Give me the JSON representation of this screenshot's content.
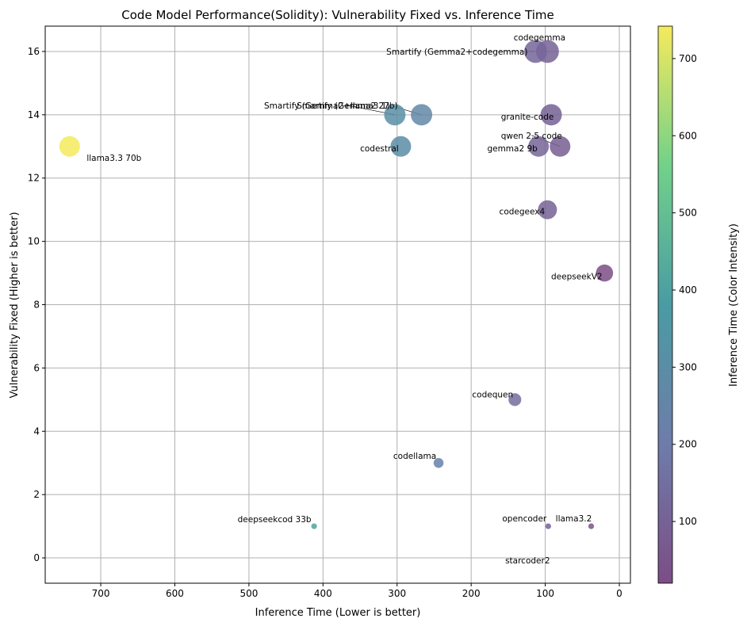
{
  "chart_data": {
    "type": "scatter",
    "title": "Code Model Performance(Solidity): Vulnerability Fixed vs. Inference Time",
    "xlabel": "Inference Time (Lower is better)",
    "ylabel": "Vulnerability Fixed (Higher is better)",
    "xlim": [
      775,
      -15
    ],
    "ylim": [
      -0.8,
      16.8
    ],
    "x_ticks": [
      700,
      600,
      500,
      400,
      300,
      200,
      100,
      0
    ],
    "y_ticks": [
      0,
      2,
      4,
      6,
      8,
      10,
      12,
      14,
      16
    ],
    "grid": true,
    "colormap": "viridis",
    "colorbar": {
      "label": "Inference Time (Color Intensity)",
      "range": [
        20,
        742
      ],
      "ticks": [
        100,
        200,
        300,
        400,
        500,
        600,
        700
      ]
    },
    "points": [
      {
        "label": "codegemma",
        "x": 97,
        "y": 16
      },
      {
        "label": "Smartify (Gemma2+codegemma)",
        "x": 113,
        "y": 16
      },
      {
        "label": "granite-code",
        "x": 92,
        "y": 14
      },
      {
        "label": "Smartify (Gemma2+llama3.1)",
        "x": 267,
        "y": 14
      },
      {
        "label": "Smartify (Gemma2 27b)",
        "x": 303,
        "y": 14
      },
      {
        "label": "llama3.3 70b",
        "x": 742,
        "y": 13
      },
      {
        "label": "codestral",
        "x": 295,
        "y": 13
      },
      {
        "label": "qwen 2.5 code",
        "x": 80,
        "y": 13
      },
      {
        "label": "gemma2 9b",
        "x": 109,
        "y": 13
      },
      {
        "label": "codegeex4",
        "x": 97,
        "y": 11
      },
      {
        "label": "deepseekV2",
        "x": 20,
        "y": 9
      },
      {
        "label": "codequen",
        "x": 141,
        "y": 5
      },
      {
        "label": "codellama",
        "x": 244,
        "y": 3
      },
      {
        "label": "deepseekcod 33b",
        "x": 412,
        "y": 1
      },
      {
        "label": "opencoder",
        "x": 96,
        "y": 1
      },
      {
        "label": "llama3.2",
        "x": 38,
        "y": 1
      },
      {
        "label": "starcoder2",
        "x": 96,
        "y": 1
      }
    ]
  }
}
